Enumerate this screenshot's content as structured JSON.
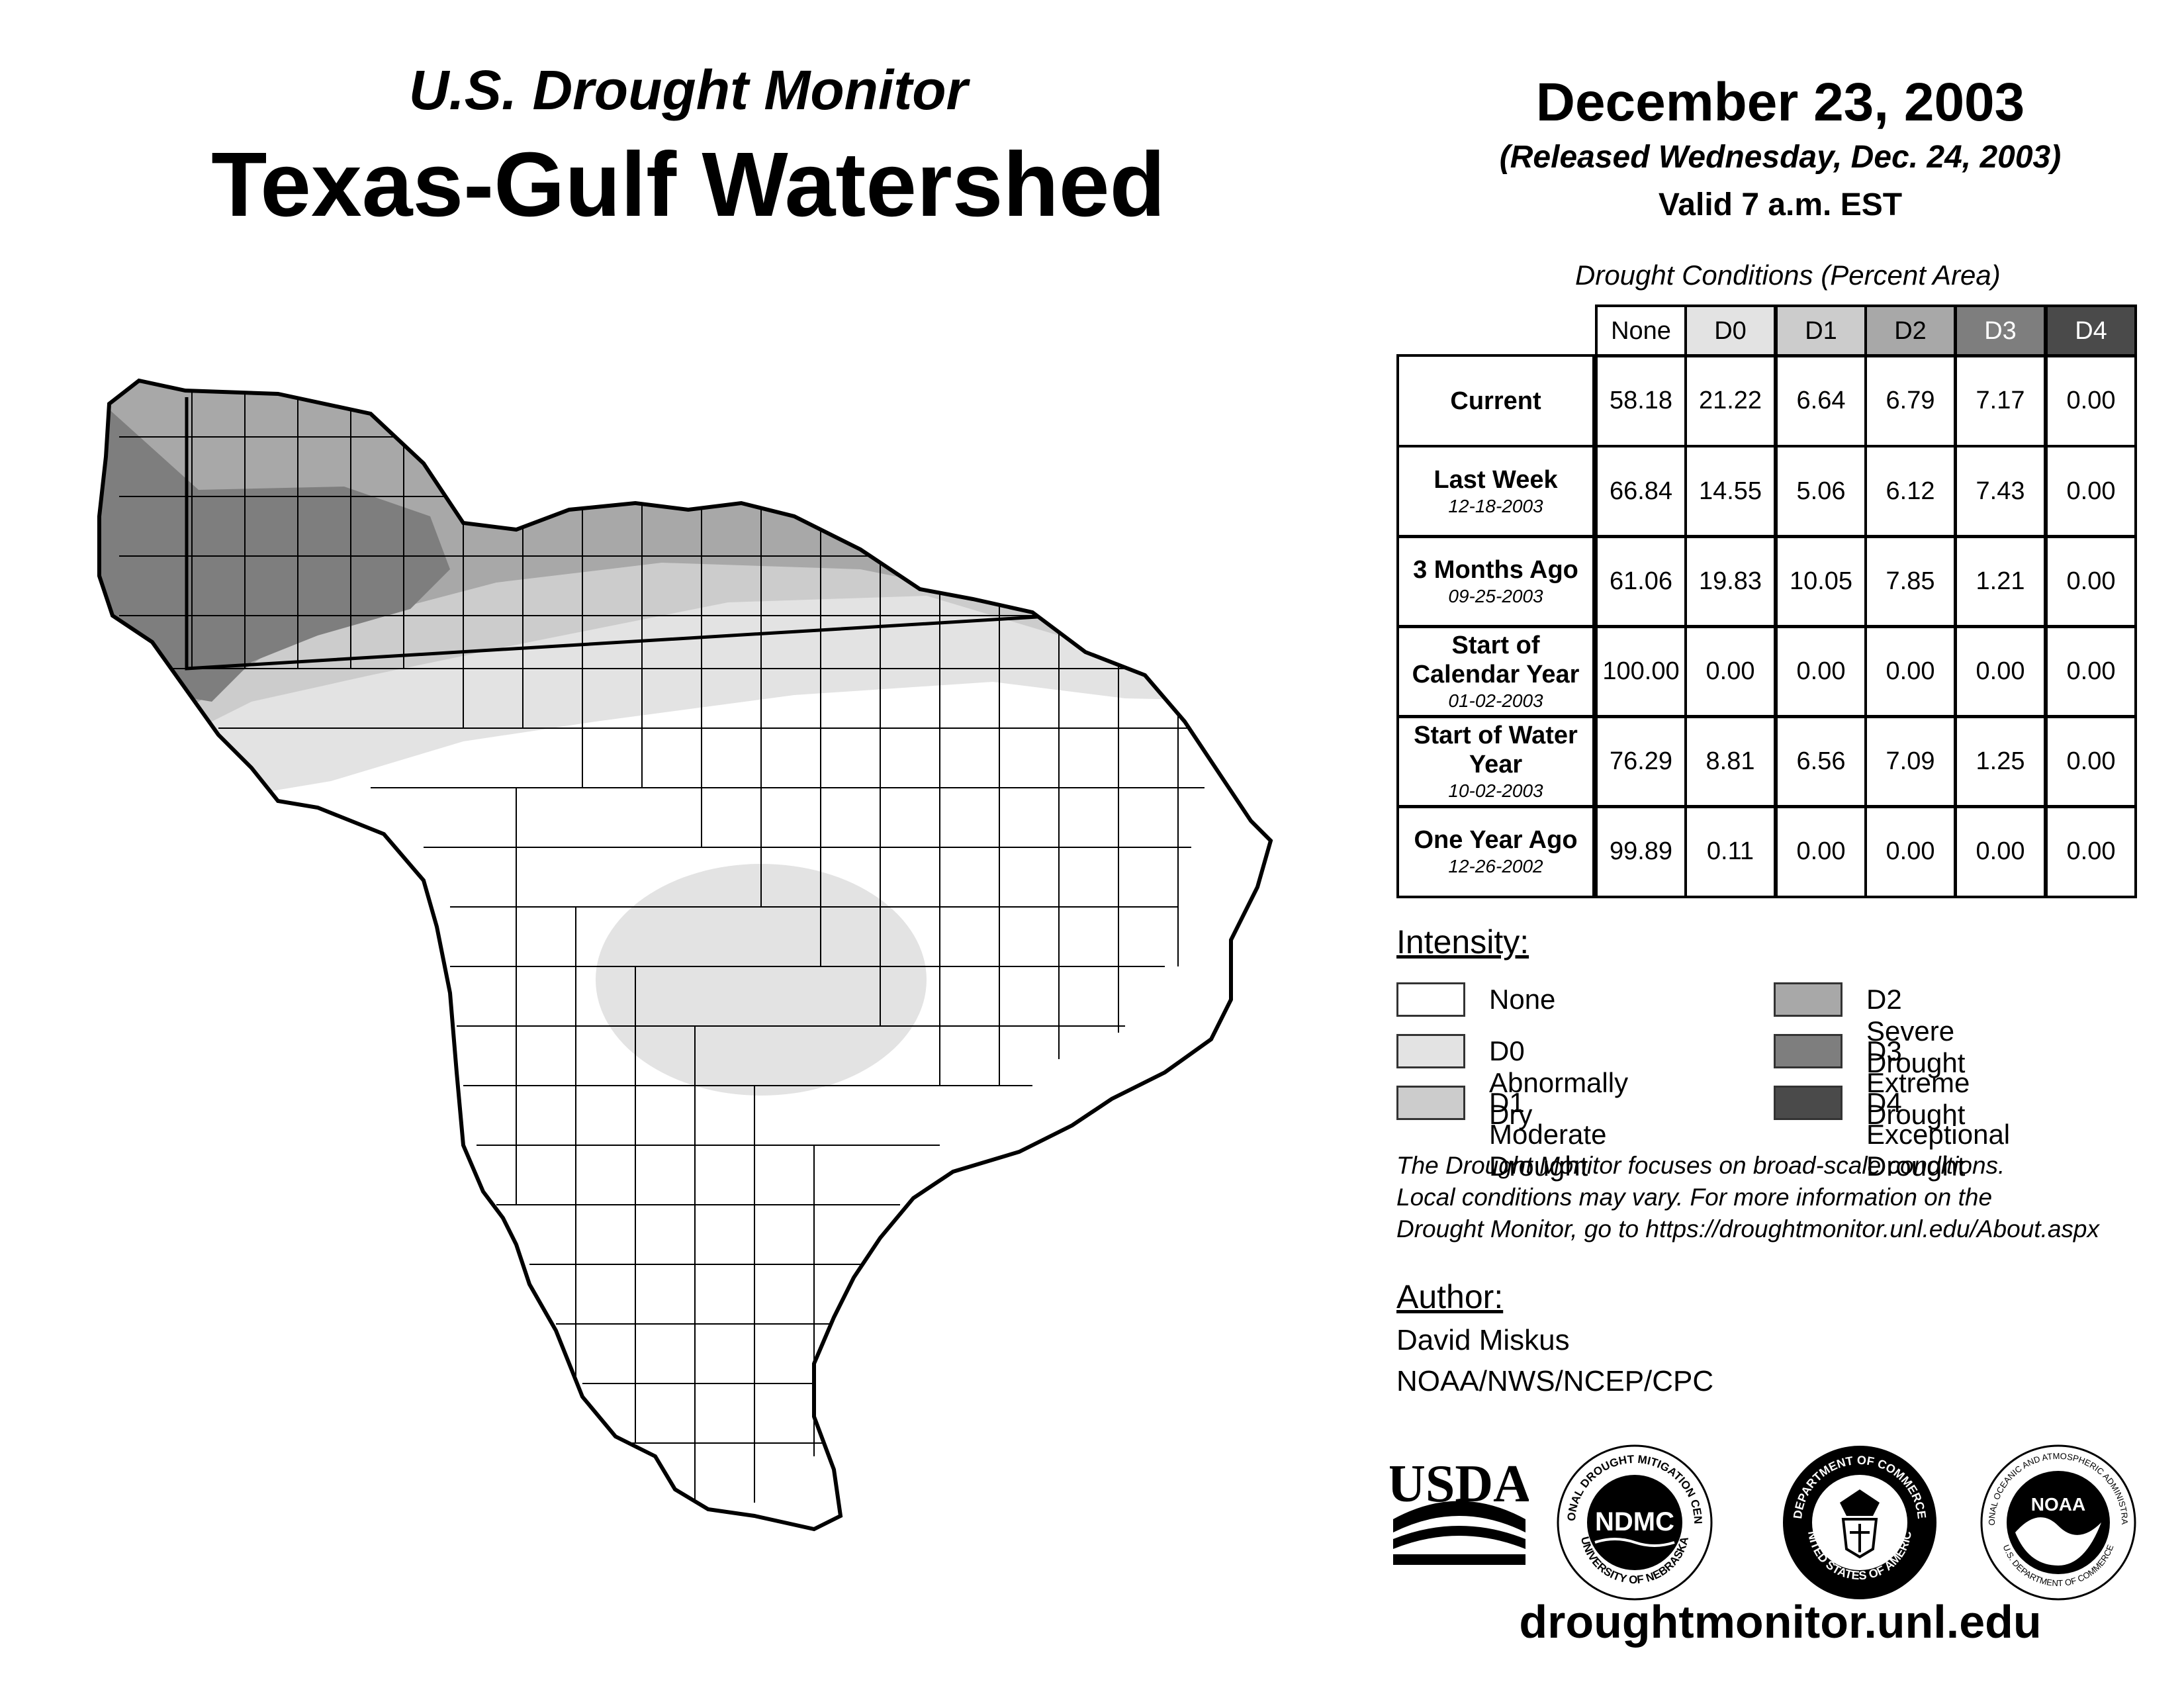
{
  "header": {
    "subtitle": "U.S. Drought Monitor",
    "title": "Texas-Gulf Watershed",
    "date": "December 23, 2003",
    "released": "(Released Wednesday, Dec. 24, 2003)",
    "valid": "Valid 7 a.m. EST"
  },
  "table": {
    "caption": "Drought Conditions (Percent Area)",
    "columns": [
      "None",
      "D0",
      "D1",
      "D2",
      "D3",
      "D4"
    ],
    "column_colors": [
      "#ffffff",
      "#e3e3e3",
      "#cccccc",
      "#a8a8a8",
      "#7e7e7e",
      "#4a4a4a"
    ],
    "column_text_colors": [
      "#000000",
      "#000000",
      "#000000",
      "#000000",
      "#ffffff",
      "#ffffff"
    ],
    "rows": [
      {
        "label": "Current",
        "date": "",
        "values": [
          "58.18",
          "21.22",
          "6.64",
          "6.79",
          "7.17",
          "0.00"
        ]
      },
      {
        "label": "Last Week",
        "date": "12-18-2003",
        "values": [
          "66.84",
          "14.55",
          "5.06",
          "6.12",
          "7.43",
          "0.00"
        ]
      },
      {
        "label": "3 Months Ago",
        "date": "09-25-2003",
        "values": [
          "61.06",
          "19.83",
          "10.05",
          "7.85",
          "1.21",
          "0.00"
        ]
      },
      {
        "label": "Start of Calendar Year",
        "date": "01-02-2003",
        "values": [
          "100.00",
          "0.00",
          "0.00",
          "0.00",
          "0.00",
          "0.00"
        ]
      },
      {
        "label": "Start of Water Year",
        "date": "10-02-2003",
        "values": [
          "76.29",
          "8.81",
          "6.56",
          "7.09",
          "1.25",
          "0.00"
        ]
      },
      {
        "label": "One Year Ago",
        "date": "12-26-2002",
        "values": [
          "99.89",
          "0.11",
          "0.00",
          "0.00",
          "0.00",
          "0.00"
        ]
      }
    ]
  },
  "legend": {
    "heading": "Intensity:",
    "items": [
      {
        "label": "None",
        "color": "#ffffff"
      },
      {
        "label": "D0 Abnormally Dry",
        "color": "#e3e3e3"
      },
      {
        "label": "D1 Moderate Drought",
        "color": "#cccccc"
      },
      {
        "label": "D2 Severe Drought",
        "color": "#a8a8a8"
      },
      {
        "label": "D3 Extreme Drought",
        "color": "#7e7e7e"
      },
      {
        "label": "D4 Exceptional Drought",
        "color": "#4a4a4a"
      }
    ]
  },
  "note": {
    "line1": "The Drought Monitor focuses on broad-scale conditions.",
    "line2": "Local conditions may vary. For more information on the",
    "line3": "Drought Monitor, go to https://droughtmonitor.unl.edu/About.aspx"
  },
  "author": {
    "heading": "Author:",
    "name": "David Miskus",
    "org": "NOAA/NWS/NCEP/CPC"
  },
  "logos": {
    "usda": "USDA",
    "ndmc": "NDMC",
    "ndmc_ring_top": "NATIONAL DROUGHT MITIGATION CENTER",
    "ndmc_ring_bottom": "UNIVERSITY OF NEBRASKA",
    "doc_ring_top": "DEPARTMENT OF COMMERCE",
    "doc_ring_bottom": "UNITED STATES OF AMERICA",
    "noaa": "NOAA",
    "noaa_ring_top": "NATIONAL OCEANIC AND ATMOSPHERIC ADMINISTRATION",
    "noaa_ring_bottom": "U.S. DEPARTMENT OF COMMERCE"
  },
  "website": "droughtmonitor.unl.edu"
}
